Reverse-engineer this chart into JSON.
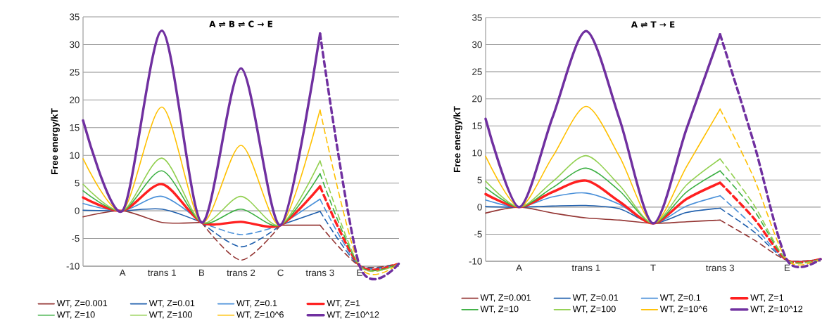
{
  "chart_data": [
    {
      "type": "line",
      "title": "A ⇌ B ⇌ C → E",
      "ylabel": "Free energy/kT",
      "categories": [
        null,
        "A",
        "trans 1",
        "B",
        "trans 2",
        "C",
        "trans 3",
        "E",
        null
      ],
      "ylim": [
        -10,
        35
      ],
      "yticks": [
        -10,
        -5,
        0,
        5,
        10,
        15,
        20,
        25,
        30,
        35
      ],
      "grid": "y",
      "legend": "bottom",
      "series": [
        {
          "name": "WT, Z=0.001",
          "color": "#953735",
          "line_style": [
            "solid",
            "solid",
            "solid",
            "dashed",
            "dashed",
            "solid",
            "dashed",
            "dashed"
          ],
          "values": [
            -1.1,
            0,
            -2.1,
            -2.1,
            -8.9,
            -2.6,
            -2.6,
            -9.9,
            -9.5
          ]
        },
        {
          "name": "WT, Z=0.01",
          "color": "#1f5fad",
          "line_style": [
            "solid",
            "solid",
            "solid",
            "dashed",
            "dashed",
            "solid",
            "dashed",
            "dashed"
          ],
          "values": [
            0.1,
            0,
            0.3,
            -2.1,
            -6.5,
            -2.6,
            -0.1,
            -9.9,
            -9.5
          ]
        },
        {
          "name": "WT, Z=0.1",
          "color": "#4a90d9",
          "line_style": [
            "solid",
            "solid",
            "solid",
            "dashed",
            "dashed",
            "solid",
            "dashed",
            "dashed"
          ],
          "values": [
            1.3,
            0,
            2.6,
            -2.1,
            -4.3,
            -2.6,
            2.1,
            -9.9,
            -9.5
          ]
        },
        {
          "name": "WT, Z=1",
          "color": "#ff2020",
          "line_style": [
            "solid",
            "solid",
            "solid",
            "solid",
            "solid",
            "solid",
            "dashed",
            "dashed"
          ],
          "values": [
            2.4,
            0,
            4.8,
            -2.1,
            -2.0,
            -2.6,
            4.4,
            -9.9,
            -9.5
          ]
        },
        {
          "name": "WT, Z=10",
          "color": "#3cb043",
          "line_style": [
            "solid",
            "solid",
            "solid",
            "solid",
            "solid",
            "solid",
            "dashed",
            "dashed"
          ],
          "values": [
            3.6,
            0,
            7.2,
            -2.1,
            0.3,
            -2.6,
            6.7,
            -9.9,
            -9.5
          ]
        },
        {
          "name": "WT, Z=100",
          "color": "#92d050",
          "line_style": [
            "solid",
            "solid",
            "solid",
            "solid",
            "solid",
            "solid",
            "dashed",
            "dashed"
          ],
          "values": [
            4.8,
            0,
            9.5,
            -2.1,
            2.6,
            -2.6,
            9.0,
            -9.9,
            -9.5
          ]
        },
        {
          "name": "WT, Z=10^6",
          "color": "#ffc000",
          "line_style": [
            "solid",
            "solid",
            "solid",
            "solid",
            "solid",
            "solid",
            "dashed",
            "dashed"
          ],
          "values": [
            9.4,
            0,
            18.7,
            -2.1,
            11.8,
            -2.6,
            18.2,
            -9.9,
            -9.5
          ]
        },
        {
          "name": "WT, Z=10^12",
          "color": "#7030a0",
          "line_style": [
            "solid",
            "solid",
            "solid",
            "solid",
            "solid",
            "solid",
            "dashed",
            "dashed"
          ],
          "values": [
            16.3,
            0,
            32.5,
            -2.1,
            25.7,
            -2.6,
            32.0,
            -9.9,
            -9.5
          ]
        }
      ]
    },
    {
      "type": "line",
      "title": "A ⇌ T → E",
      "ylabel": "Free energy/kT",
      "categories": [
        null,
        "A",
        null,
        "trans 1",
        null,
        "T",
        null,
        "trans 3",
        null,
        "E",
        null
      ],
      "ylim": [
        -10,
        35
      ],
      "yticks": [
        -10,
        -5,
        0,
        5,
        10,
        15,
        20,
        25,
        30,
        35
      ],
      "grid": "y",
      "legend": "bottom",
      "series": [
        {
          "name": "WT, Z=0.001",
          "color": "#953735",
          "line_style": [
            "solid",
            "solid",
            "solid",
            "solid",
            "solid",
            "solid",
            "solid",
            "dashed",
            "dashed",
            "dashed"
          ],
          "values": [
            -1.1,
            0,
            -1.1,
            -2.0,
            -2.4,
            -3.0,
            -2.7,
            -2.4,
            -6.0,
            -9.8,
            -9.6
          ]
        },
        {
          "name": "WT, Z=0.01",
          "color": "#1f5fad",
          "line_style": [
            "solid",
            "solid",
            "solid",
            "solid",
            "solid",
            "solid",
            "solid",
            "dashed",
            "dashed",
            "dashed"
          ],
          "values": [
            0.1,
            0,
            0.2,
            0.3,
            -0.3,
            -3.0,
            -1.0,
            -0.2,
            -4.5,
            -9.8,
            -9.6
          ]
        },
        {
          "name": "WT, Z=0.1",
          "color": "#4a90d9",
          "line_style": [
            "solid",
            "solid",
            "solid",
            "solid",
            "solid",
            "solid",
            "solid",
            "dashed",
            "dashed",
            "dashed"
          ],
          "values": [
            1.3,
            0,
            1.9,
            2.6,
            0.5,
            -3.0,
            0.2,
            2.1,
            -3.5,
            -9.8,
            -9.6
          ]
        },
        {
          "name": "WT, Z=1",
          "color": "#ff2020",
          "line_style": [
            "solid",
            "solid",
            "solid",
            "solid",
            "solid",
            "solid",
            "solid",
            "dashed",
            "dashed",
            "dashed"
          ],
          "values": [
            2.4,
            0,
            2.8,
            4.9,
            1.0,
            -3.0,
            1.5,
            4.5,
            -2.0,
            -9.8,
            -9.6
          ]
        },
        {
          "name": "WT, Z=10",
          "color": "#3cb043",
          "line_style": [
            "solid",
            "solid",
            "solid",
            "solid",
            "solid",
            "solid",
            "solid",
            "dashed",
            "dashed",
            "dashed"
          ],
          "values": [
            3.6,
            0,
            3.6,
            7.2,
            3.0,
            -3.0,
            2.8,
            6.7,
            -0.5,
            -9.8,
            -9.6
          ]
        },
        {
          "name": "WT, Z=100",
          "color": "#92d050",
          "line_style": [
            "solid",
            "solid",
            "solid",
            "solid",
            "solid",
            "solid",
            "solid",
            "dashed",
            "dashed",
            "dashed"
          ],
          "values": [
            4.8,
            0,
            4.7,
            9.5,
            4.0,
            -3.0,
            4.1,
            8.9,
            0.5,
            -9.8,
            -9.6
          ]
        },
        {
          "name": "WT, Z=10^6",
          "color": "#ffc000",
          "line_style": [
            "solid",
            "solid",
            "solid",
            "solid",
            "solid",
            "solid",
            "solid",
            "dashed",
            "dashed",
            "dashed"
          ],
          "values": [
            9.4,
            0,
            9.3,
            18.6,
            9.3,
            -3.0,
            7.5,
            18.1,
            5.5,
            -9.8,
            -9.6
          ]
        },
        {
          "name": "WT, Z=10^12",
          "color": "#7030a0",
          "line_style": [
            "solid",
            "solid",
            "solid",
            "solid",
            "solid",
            "solid",
            "solid",
            "dashed",
            "dashed",
            "dashed"
          ],
          "values": [
            16.3,
            0,
            16.6,
            32.5,
            16.2,
            -3.0,
            14.5,
            31.9,
            12.0,
            -9.8,
            -9.6
          ]
        }
      ]
    }
  ]
}
